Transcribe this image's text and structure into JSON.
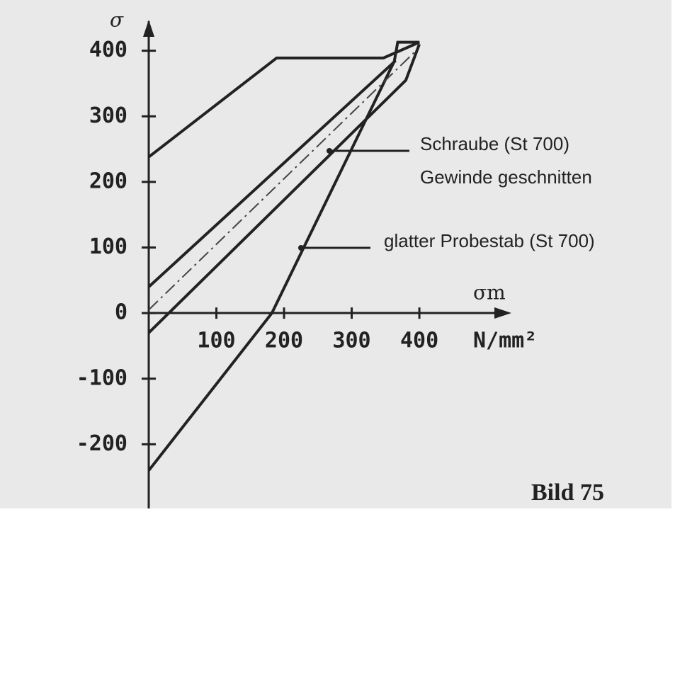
{
  "chart_data": {
    "type": "line",
    "y_label": "σ",
    "x_label": "σm",
    "x_unit": "N/mm²",
    "xlim": [
      0,
      535
    ],
    "ylim": [
      -300,
      445
    ],
    "xticks": [
      100,
      200,
      300,
      400
    ],
    "yticks": [
      400,
      300,
      200,
      100,
      0,
      -100,
      -200
    ],
    "series": [
      {
        "name": "glatter Probestab (St 700)",
        "color": "#222",
        "style": "solid",
        "x": [
          0,
          189,
          347,
          400,
          368,
          363,
          182,
          0
        ],
        "values": [
          238,
          389,
          389,
          413,
          413,
          384,
          0,
          -240
        ]
      },
      {
        "name": "Schraube (St 700)",
        "color": "#222",
        "style": "solid",
        "x": [
          0,
          365
        ],
        "values": [
          40,
          385
        ]
      },
      {
        "name": "Schraube (St 700)",
        "color": "#222",
        "style": "solid",
        "x": [
          0,
          380,
          400
        ],
        "values": [
          -30,
          355,
          410
        ]
      },
      {
        "name": "Gewinde geschnitten",
        "color": "#444",
        "style": "dashdot",
        "x": [
          0,
          395
        ],
        "values": [
          5,
          400
        ]
      }
    ],
    "figure_label": "Bild 75"
  }
}
